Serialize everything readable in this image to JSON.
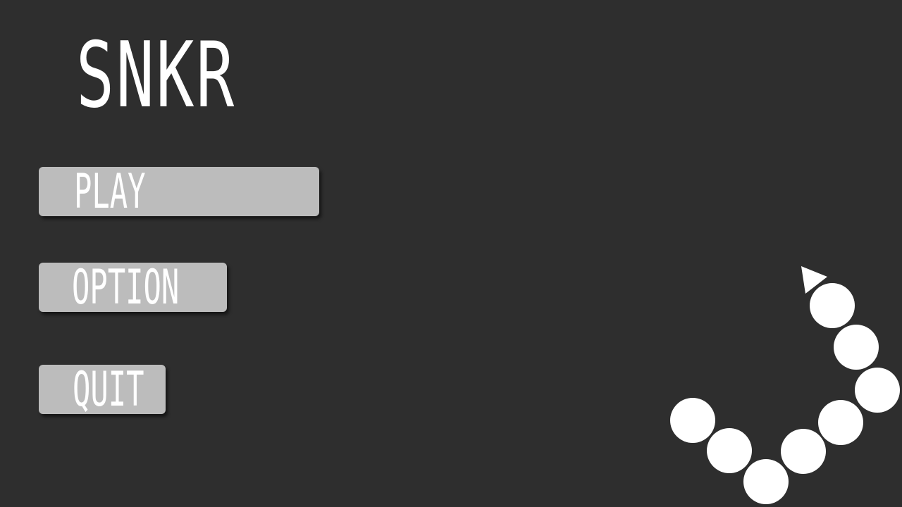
{
  "game": {
    "title": "SNKR"
  },
  "menu": {
    "play_label": "PLAY",
    "option_label": "OPTION",
    "quit_label": "QUIT"
  },
  "colors": {
    "background": "#2e2e2e",
    "button": "#bcbcbc",
    "text": "#ffffff",
    "snake": "#ffffff"
  },
  "decoration": {
    "snake_segment_count": 8,
    "snake_head_icon": "triangle-pointer-icon"
  }
}
